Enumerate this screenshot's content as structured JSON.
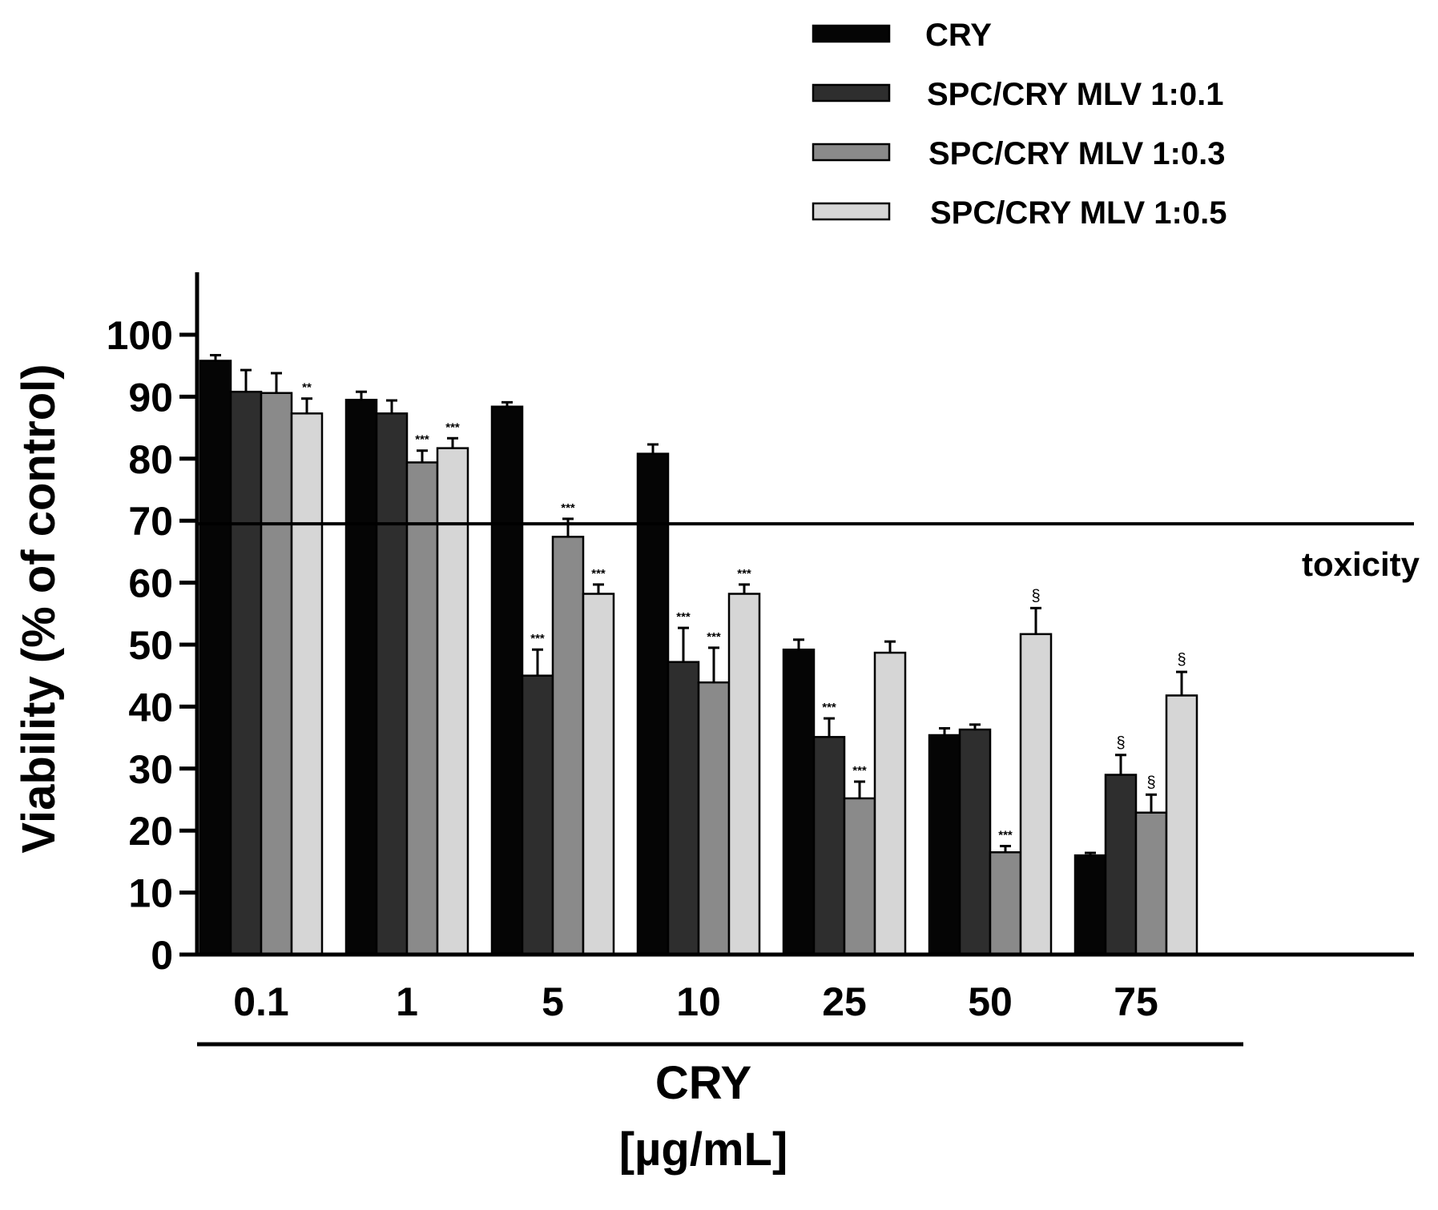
{
  "chart_data": {
    "type": "bar",
    "title": "",
    "xlabel": "CRY",
    "xlabel_unit": "[µg/mL]",
    "ylabel": "Viability (% of control)",
    "ylim": [
      0,
      100
    ],
    "yticks": [
      0,
      10,
      20,
      30,
      40,
      50,
      60,
      70,
      80,
      90,
      100
    ],
    "categories": [
      "0.1",
      "1",
      "5",
      "10",
      "25",
      "50",
      "75"
    ],
    "series": [
      {
        "name": "CRY",
        "color": "#050505",
        "values": [
          95.8,
          89.5,
          88.4,
          80.8,
          49.2,
          35.4,
          16.0
        ],
        "errors": [
          0.9,
          1.3,
          0.7,
          1.5,
          1.6,
          1.1,
          0.4
        ],
        "annotations": [
          "",
          "",
          "",
          "",
          "",
          "",
          ""
        ]
      },
      {
        "name": "SPC/CRY MLV 1:0.1",
        "color": "#2e2e2e",
        "values": [
          90.8,
          87.3,
          45.0,
          47.2,
          35.1,
          36.3,
          29.0
        ],
        "errors": [
          3.5,
          2.1,
          4.2,
          5.5,
          3.0,
          0.8,
          3.2
        ],
        "annotations": [
          "",
          "",
          "***",
          "***",
          "***",
          "",
          "§"
        ]
      },
      {
        "name": "SPC/CRY MLV 1:0.3",
        "color": "#8a8a8a",
        "values": [
          90.6,
          79.4,
          67.4,
          43.9,
          25.2,
          16.5,
          22.9
        ],
        "errors": [
          3.2,
          1.9,
          2.9,
          5.6,
          2.7,
          1.0,
          2.9
        ],
        "annotations": [
          "",
          "***",
          "***",
          "***",
          "***",
          "***",
          "§"
        ]
      },
      {
        "name": "SPC/CRY MLV 1:0.5",
        "color": "#d6d6d6",
        "values": [
          87.3,
          81.7,
          58.2,
          58.2,
          48.7,
          51.7,
          41.8
        ],
        "errors": [
          2.4,
          1.6,
          1.5,
          1.5,
          1.8,
          4.2,
          3.8
        ],
        "annotations": [
          "**",
          "***",
          "***",
          "***",
          "",
          "§",
          "§"
        ]
      }
    ],
    "threshold": {
      "value": 69.5,
      "label": "toxicity"
    },
    "legend": "top-right",
    "grid": false
  }
}
